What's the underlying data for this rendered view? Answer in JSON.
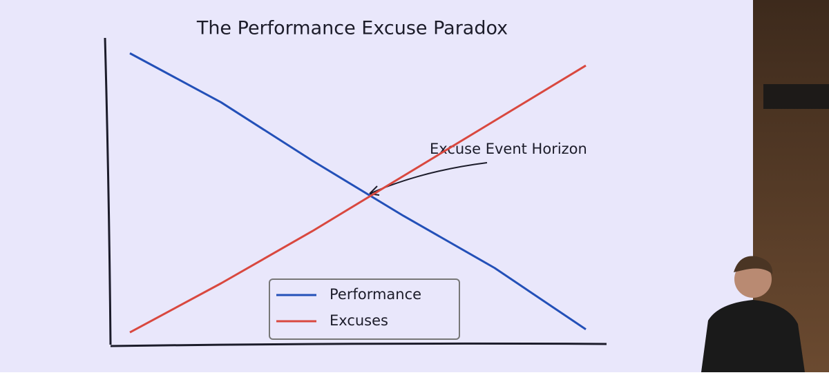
{
  "chart_data": {
    "type": "line",
    "title": "The Performance Excuse Paradox",
    "x": [
      0,
      2,
      4,
      6,
      8,
      10
    ],
    "xlim": [
      0,
      10
    ],
    "ylim": [
      0,
      100
    ],
    "series": [
      {
        "name": "Performance",
        "color": "#2350b8",
        "values": [
          95,
          79,
          60,
          42,
          25,
          5
        ]
      },
      {
        "name": "Excuses",
        "color": "#d9483f",
        "values": [
          4,
          20,
          37,
          55,
          73,
          91
        ]
      }
    ],
    "annotation": "Excuse Event Horizon",
    "legend": "bottom"
  }
}
